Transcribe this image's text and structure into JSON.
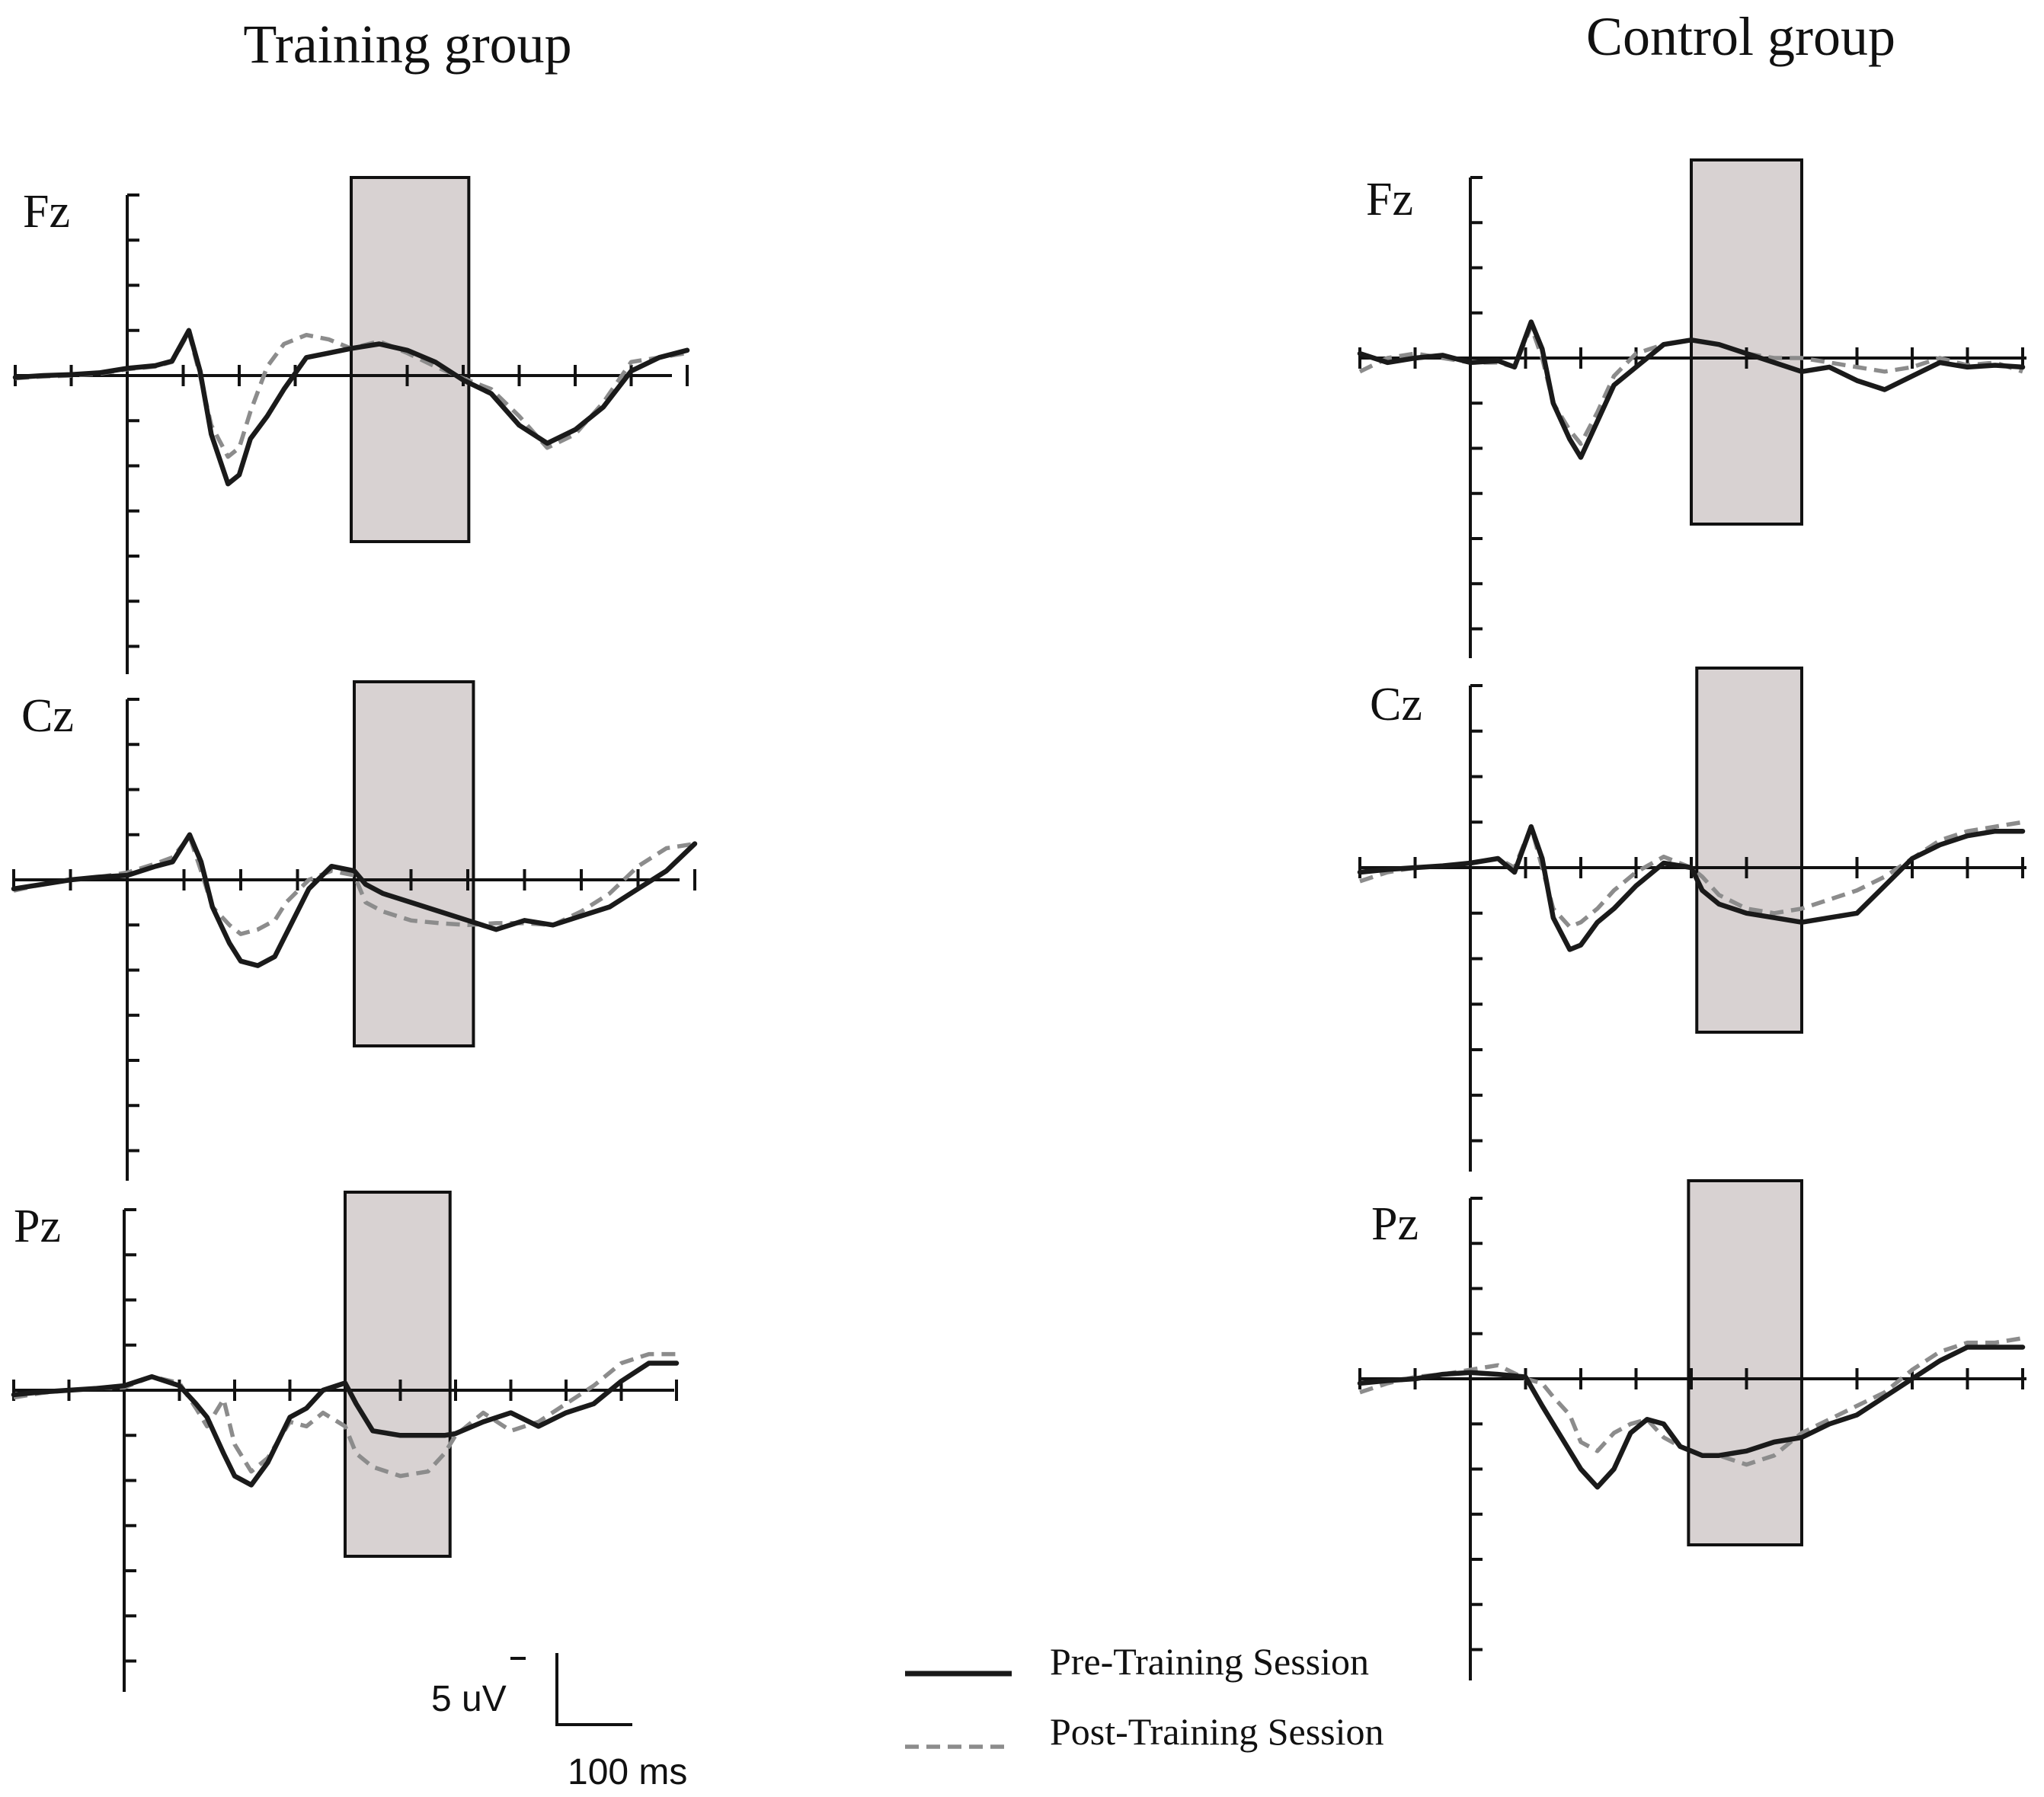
{
  "chart_data": [
    {
      "type": "line",
      "group": "Training group",
      "electrode": "Fz",
      "x_unit": "ms",
      "x_range": [
        -200,
        1000
      ],
      "roi": [
        400,
        610
      ],
      "series": [
        {
          "name": "Pre-Training Session",
          "style": "solid",
          "color": "#1a1a1a",
          "x": [
            -200,
            -150,
            -100,
            -50,
            0,
            50,
            80,
            110,
            130,
            150,
            180,
            200,
            220,
            250,
            280,
            320,
            360,
            400,
            450,
            500,
            550,
            600,
            650,
            700,
            750,
            800,
            850,
            900,
            950,
            1000
          ],
          "y": [
            -0.2,
            0,
            0.1,
            0.3,
            0.8,
            1.1,
            1.6,
            5.0,
            0.5,
            -6.5,
            -12,
            -11,
            -7,
            -4.5,
            -1.5,
            2.0,
            2.5,
            3.0,
            3.5,
            2.8,
            1.5,
            -0.5,
            -2.0,
            -5.5,
            -7.5,
            -6.0,
            -3.5,
            0.5,
            2.0,
            2.8
          ]
        },
        {
          "name": "Post-Training Session",
          "style": "dashed",
          "color": "#8c8c8c",
          "x": [
            -200,
            -150,
            -100,
            -50,
            0,
            50,
            80,
            110,
            130,
            150,
            180,
            200,
            220,
            250,
            280,
            320,
            360,
            400,
            450,
            500,
            550,
            600,
            650,
            700,
            750,
            800,
            850,
            900,
            950,
            1000
          ],
          "y": [
            -0.3,
            -0.1,
            0,
            0.2,
            0.7,
            1.0,
            1.5,
            4.8,
            0,
            -5.5,
            -9,
            -8,
            -4,
            1.0,
            3.5,
            4.5,
            4.0,
            3.0,
            3.8,
            2.5,
            1.0,
            -0.3,
            -1.5,
            -4.5,
            -8.0,
            -6.5,
            -3.0,
            1.5,
            2.0,
            2.5
          ]
        }
      ]
    },
    {
      "type": "line",
      "group": "Training group",
      "electrode": "Cz",
      "x_unit": "ms",
      "x_range": [
        -200,
        1000
      ],
      "roi": [
        400,
        610
      ],
      "series": [
        {
          "name": "Pre-Training Session",
          "style": "solid",
          "color": "#1a1a1a",
          "x": [
            -200,
            -150,
            -100,
            -50,
            0,
            50,
            80,
            110,
            130,
            150,
            180,
            200,
            230,
            260,
            280,
            320,
            360,
            400,
            420,
            450,
            500,
            550,
            600,
            650,
            700,
            750,
            800,
            850,
            900,
            950,
            1000
          ],
          "y": [
            -1.0,
            -0.5,
            0,
            0.3,
            0.5,
            1.5,
            2.0,
            5.0,
            2.0,
            -3.0,
            -7.0,
            -9.0,
            -9.5,
            -8.5,
            -6.0,
            -1.0,
            1.5,
            1.0,
            -0.5,
            -1.5,
            -2.5,
            -3.5,
            -4.5,
            -5.5,
            -4.5,
            -5.0,
            -4.0,
            -3.0,
            -1.0,
            1.0,
            4.0
          ]
        },
        {
          "name": "Post-Training Session",
          "style": "dashed",
          "color": "#8c8c8c",
          "x": [
            -200,
            -150,
            -100,
            -50,
            0,
            50,
            80,
            110,
            130,
            150,
            180,
            200,
            230,
            260,
            280,
            320,
            360,
            400,
            420,
            450,
            500,
            550,
            600,
            650,
            700,
            750,
            800,
            850,
            900,
            950,
            1000
          ],
          "y": [
            -1.2,
            -0.5,
            0,
            0.3,
            0.8,
            1.8,
            2.5,
            4.8,
            1.0,
            -3.0,
            -5.0,
            -6.0,
            -5.5,
            -4.5,
            -2.5,
            0,
            1.0,
            0.5,
            -2.5,
            -3.5,
            -4.5,
            -4.8,
            -5.0,
            -4.8,
            -4.8,
            -5.0,
            -3.5,
            -1.5,
            1.5,
            3.5,
            4.0
          ]
        }
      ]
    },
    {
      "type": "line",
      "group": "Training group",
      "electrode": "Pz",
      "x_unit": "ms",
      "x_range": [
        -200,
        1000
      ],
      "roi": [
        400,
        590
      ],
      "series": [
        {
          "name": "Pre-Training Session",
          "style": "solid",
          "color": "#1a1a1a",
          "x": [
            -200,
            -150,
            -100,
            -50,
            0,
            50,
            100,
            130,
            150,
            180,
            200,
            230,
            260,
            300,
            330,
            360,
            400,
            420,
            450,
            500,
            550,
            580,
            600,
            650,
            700,
            750,
            800,
            850,
            900,
            950,
            1000
          ],
          "y": [
            -0.5,
            -0.2,
            0,
            0.2,
            0.5,
            1.5,
            0.5,
            -1.5,
            -3.0,
            -7.0,
            -9.5,
            -10.5,
            -8.0,
            -3.0,
            -2.0,
            0,
            0.8,
            -1.5,
            -4.5,
            -5.0,
            -5.0,
            -5.0,
            -4.8,
            -3.5,
            -2.5,
            -4.0,
            -2.5,
            -1.5,
            1.0,
            3.0,
            3.0
          ]
        },
        {
          "name": "Post-Training Session",
          "style": "dashed",
          "color": "#8c8c8c",
          "x": [
            -200,
            -150,
            -100,
            -50,
            0,
            50,
            100,
            130,
            150,
            180,
            200,
            230,
            260,
            300,
            330,
            360,
            400,
            420,
            450,
            500,
            550,
            580,
            600,
            650,
            700,
            750,
            800,
            850,
            900,
            950,
            1000
          ],
          "y": [
            -0.8,
            -0.3,
            0,
            0.2,
            0.3,
            1.5,
            0.8,
            -2.0,
            -4.0,
            -1.0,
            -6.0,
            -9.0,
            -7.5,
            -3.5,
            -4.0,
            -2.5,
            -4.0,
            -7.0,
            -8.5,
            -9.5,
            -9.0,
            -7.0,
            -5.0,
            -2.5,
            -4.5,
            -3.5,
            -1.5,
            0.5,
            3.0,
            4.0,
            4.0
          ]
        }
      ]
    },
    {
      "type": "line",
      "group": "Control group",
      "electrode": "Fz",
      "x_unit": "ms",
      "x_range": [
        -200,
        1000
      ],
      "roi": [
        400,
        600
      ],
      "series": [
        {
          "name": "Pre-Training Session",
          "style": "solid",
          "color": "#1a1a1a",
          "x": [
            -200,
            -150,
            -100,
            -50,
            0,
            50,
            80,
            110,
            130,
            150,
            180,
            200,
            230,
            260,
            300,
            350,
            400,
            450,
            500,
            550,
            600,
            650,
            700,
            750,
            800,
            850,
            900,
            950,
            1000
          ],
          "y": [
            0.5,
            -0.5,
            0,
            0.3,
            -0.5,
            -0.3,
            -1.0,
            4.0,
            1.0,
            -5.0,
            -9.0,
            -11.0,
            -7.0,
            -3.0,
            -1.0,
            1.5,
            2.0,
            1.5,
            0.5,
            -0.5,
            -1.5,
            -1.0,
            -2.5,
            -3.5,
            -2.0,
            -0.5,
            -1.0,
            -0.8,
            -1.0
          ]
        },
        {
          "name": "Post-Training Session",
          "style": "dashed",
          "color": "#8c8c8c",
          "x": [
            -200,
            -150,
            -100,
            -50,
            0,
            50,
            80,
            110,
            130,
            150,
            180,
            200,
            230,
            260,
            300,
            350,
            400,
            450,
            500,
            550,
            600,
            650,
            700,
            750,
            800,
            850,
            900,
            950,
            1000
          ],
          "y": [
            -1.5,
            0,
            0.5,
            0,
            -0.5,
            -0.5,
            -1.0,
            3.5,
            0,
            -5.0,
            -8.0,
            -9.5,
            -6.0,
            -2.0,
            0.5,
            1.5,
            2.0,
            1.5,
            0.5,
            0,
            0,
            -0.5,
            -1.0,
            -1.5,
            -1.0,
            0,
            -0.8,
            -0.5,
            -1.5
          ]
        }
      ]
    },
    {
      "type": "line",
      "group": "Control group",
      "electrode": "Cz",
      "x_unit": "ms",
      "x_range": [
        -200,
        1000
      ],
      "roi": [
        410,
        600
      ],
      "series": [
        {
          "name": "Pre-Training Session",
          "style": "solid",
          "color": "#1a1a1a",
          "x": [
            -200,
            -150,
            -100,
            -50,
            0,
            50,
            80,
            110,
            130,
            150,
            180,
            200,
            230,
            260,
            300,
            350,
            400,
            420,
            450,
            500,
            550,
            600,
            650,
            700,
            750,
            800,
            850,
            900,
            950,
            1000
          ],
          "y": [
            -0.5,
            -0.2,
            0,
            0.2,
            0.5,
            1.0,
            -0.5,
            4.5,
            1.0,
            -5.5,
            -9.0,
            -8.5,
            -6.0,
            -4.5,
            -2.0,
            0.5,
            0,
            -2.5,
            -4.0,
            -5.0,
            -5.5,
            -6.0,
            -5.5,
            -5.0,
            -2.0,
            1.0,
            2.5,
            3.5,
            4.0,
            4.0
          ]
        },
        {
          "name": "Post-Training Session",
          "style": "dashed",
          "color": "#8c8c8c",
          "x": [
            -200,
            -150,
            -100,
            -50,
            0,
            50,
            80,
            110,
            130,
            150,
            180,
            200,
            230,
            260,
            300,
            350,
            400,
            420,
            450,
            500,
            550,
            600,
            650,
            700,
            750,
            800,
            850,
            900,
            950,
            1000
          ],
          "y": [
            -1.5,
            -0.5,
            0,
            0.2,
            0.5,
            1.0,
            0,
            4.5,
            0,
            -4.5,
            -6.5,
            -6.0,
            -4.5,
            -2.5,
            -0.5,
            1.2,
            0,
            -1.0,
            -3.0,
            -4.5,
            -5.0,
            -4.5,
            -3.5,
            -2.5,
            -1.0,
            1.0,
            3.0,
            4.0,
            4.5,
            5.0
          ]
        }
      ]
    },
    {
      "type": "line",
      "group": "Control group",
      "electrode": "Pz",
      "x_unit": "ms",
      "x_range": [
        -200,
        1000
      ],
      "roi": [
        395,
        600
      ],
      "series": [
        {
          "name": "Pre-Training Session",
          "style": "solid",
          "color": "#1a1a1a",
          "x": [
            -200,
            -150,
            -100,
            -50,
            0,
            50,
            100,
            130,
            150,
            180,
            200,
            230,
            260,
            290,
            320,
            350,
            380,
            400,
            420,
            450,
            500,
            550,
            600,
            650,
            700,
            750,
            800,
            850,
            900,
            950,
            1000
          ],
          "y": [
            -0.5,
            -0.2,
            0,
            0.5,
            0.7,
            0.5,
            0.2,
            -3.0,
            -5.0,
            -8.0,
            -10.0,
            -12.0,
            -10.0,
            -6.0,
            -4.5,
            -5.0,
            -7.5,
            -8.0,
            -8.5,
            -8.5,
            -8.0,
            -7.0,
            -6.5,
            -5.0,
            -4.0,
            -2.0,
            0,
            2.0,
            3.5,
            3.5,
            3.5
          ]
        },
        {
          "name": "Post-Training Session",
          "style": "dashed",
          "color": "#8c8c8c",
          "x": [
            -200,
            -150,
            -100,
            -50,
            0,
            50,
            100,
            130,
            150,
            180,
            200,
            230,
            260,
            290,
            320,
            350,
            380,
            400,
            420,
            450,
            500,
            550,
            600,
            650,
            700,
            750,
            800,
            850,
            900,
            950,
            1000
          ],
          "y": [
            -1.5,
            -0.5,
            0.2,
            0.5,
            1.0,
            1.5,
            0,
            -0.5,
            -2.0,
            -4.0,
            -7.0,
            -8.0,
            -6.0,
            -5.0,
            -4.5,
            -6.5,
            -7.5,
            -8.0,
            -8.5,
            -8.5,
            -9.5,
            -8.5,
            -6.0,
            -4.5,
            -3.0,
            -1.5,
            1.0,
            3.0,
            4.0,
            4.0,
            4.5
          ]
        }
      ]
    }
  ],
  "titles": {
    "training": "Training  group",
    "control": "Control  group"
  },
  "legend": {
    "pre": "Pre-Training Session",
    "post": "Post-Training Session"
  },
  "scale_bar": {
    "amplitude": "5 uV",
    "time": "100 ms"
  }
}
